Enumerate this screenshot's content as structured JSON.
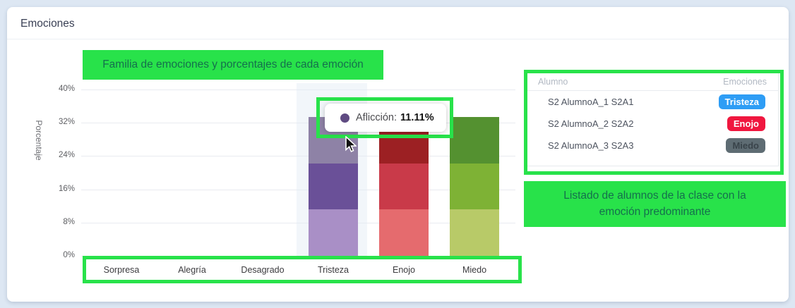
{
  "card": {
    "title": "Emociones"
  },
  "annotations": {
    "chart_note": "Familia de emociones y porcentajes de cada emoción",
    "table_note": "Listado de alumnos de la clase con la emoción predominante",
    "highlight_color": "#28e24a"
  },
  "tooltip": {
    "label": "Aflicción:",
    "value": "11.11%",
    "dot_color": "#5f4b82"
  },
  "chart_data": {
    "type": "bar",
    "stacked": true,
    "title": "",
    "xlabel": "",
    "ylabel": "Porcentaje",
    "ylim": [
      0,
      40
    ],
    "ytick_values": [
      0,
      8,
      16,
      24,
      32,
      40
    ],
    "ytick_labels": [
      "0%",
      "8%",
      "16%",
      "24%",
      "32%",
      "40%"
    ],
    "grid": true,
    "categories": [
      "Sorpresa",
      "Alegría",
      "Desagrado",
      "Tristeza",
      "Enojo",
      "Miedo"
    ],
    "hovered_category": "Tristeza",
    "bars": [
      {
        "category": "Sorpresa",
        "total": 0,
        "segments": []
      },
      {
        "category": "Alegría",
        "total": 0,
        "segments": []
      },
      {
        "category": "Desagrado",
        "total": 0,
        "segments": []
      },
      {
        "category": "Tristeza",
        "total": 33.33,
        "segments": [
          {
            "value": 11.11,
            "color": "#a98fc6"
          },
          {
            "value": 11.11,
            "color": "#6a5098"
          },
          {
            "value": 11.11,
            "color": "#8e82a6",
            "label": "Aflicción",
            "hovered": true
          }
        ]
      },
      {
        "category": "Enojo",
        "total": 33.33,
        "segments": [
          {
            "value": 11.11,
            "color": "#e56b6e"
          },
          {
            "value": 11.11,
            "color": "#c93a49"
          },
          {
            "value": 11.11,
            "color": "#9c2023"
          }
        ]
      },
      {
        "category": "Miedo",
        "total": 33.33,
        "segments": [
          {
            "value": 11.11,
            "color": "#b8ca68"
          },
          {
            "value": 11.11,
            "color": "#7eb235"
          },
          {
            "value": 11.11,
            "color": "#549130"
          }
        ]
      }
    ]
  },
  "table": {
    "headers": [
      "Alumno",
      "Emociones"
    ],
    "rows": [
      {
        "name": "S2 AlumnoA_1 S2A1",
        "emotion": "Tristeza",
        "badge_color": "#2e9df5",
        "badge_text_color": "#ffffff"
      },
      {
        "name": "S2 AlumnoA_2 S2A2",
        "emotion": "Enojo",
        "badge_color": "#f0173f",
        "badge_text_color": "#ffffff"
      },
      {
        "name": "S2 AlumnoA_3 S2A3",
        "emotion": "Miedo",
        "badge_color": "#5e6c73",
        "badge_text_color": "#39434a"
      }
    ]
  }
}
